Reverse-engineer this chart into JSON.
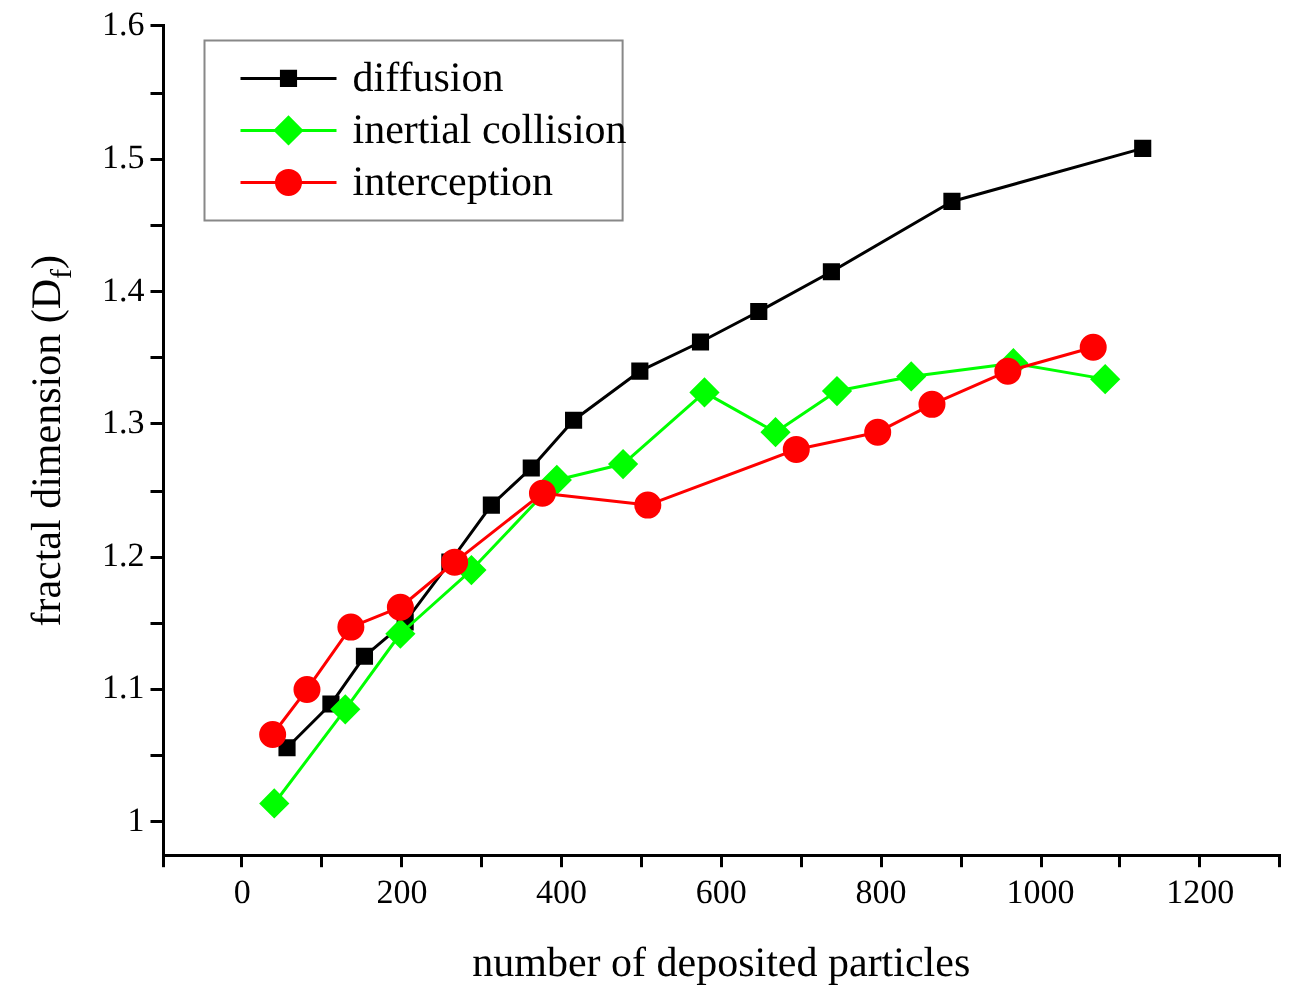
{
  "chart_data": {
    "type": "line",
    "xlabel": "number of deposited particles",
    "ylabel": "fractal dimension (D$_{f}$)",
    "xlim": [
      -100,
      1300
    ],
    "xticks": [
      {
        "value": -100,
        "label": null
      },
      0,
      {
        "value": 100,
        "label": null
      },
      200,
      {
        "value": 300,
        "label": null
      },
      400,
      {
        "value": 500,
        "label": null
      },
      600,
      {
        "value": 700,
        "label": null
      },
      800,
      {
        "value": 900,
        "label": null
      },
      1000,
      {
        "value": 1100,
        "label": null
      },
      1200,
      {
        "value": 1300,
        "label": null
      }
    ],
    "ylim": [
      0.975,
      1.6
    ],
    "yticks": [
      1.0,
      {
        "value": 1.05,
        "label": null
      },
      1.1,
      {
        "value": 1.15,
        "label": null
      },
      1.2,
      {
        "value": 1.25,
        "label": null
      },
      1.3,
      {
        "value": 1.35,
        "label": null
      },
      1.4,
      {
        "value": 1.45,
        "label": null
      },
      1.5,
      {
        "value": 1.55,
        "label": null
      },
      1.6
    ],
    "grid": false,
    "legend": "top left",
    "line_style": "solid",
    "series": [
      {
        "name": "diffusion",
        "color": "#000000",
        "marker": "square",
        "x": [
          56,
          111,
          153,
          204,
          260,
          312,
          362,
          415,
          498,
          574,
          647,
          738,
          889,
          1128
        ],
        "values": [
          1.056,
          1.089,
          1.125,
          1.151,
          1.196,
          1.239,
          1.267,
          1.303,
          1.34,
          1.362,
          1.385,
          1.415,
          1.468,
          1.508
        ]
      },
      {
        "name": "inertial collision",
        "color": "#00ff00",
        "marker": "diamond",
        "x": [
          40,
          129,
          198,
          287,
          394,
          477,
          579,
          668,
          745,
          838,
          966,
          1081
        ],
        "values": [
          1.014,
          1.085,
          1.142,
          1.19,
          1.258,
          1.27,
          1.324,
          1.294,
          1.325,
          1.336,
          1.346,
          1.334
        ]
      },
      {
        "name": "interception",
        "color": "#ff0000",
        "marker": "circle",
        "x": [
          38,
          81,
          136,
          198,
          266,
          376,
          508,
          694,
          796,
          864,
          959,
          1066
        ],
        "values": [
          1.066,
          1.1,
          1.147,
          1.162,
          1.196,
          1.248,
          1.239,
          1.281,
          1.294,
          1.315,
          1.34,
          1.358
        ]
      }
    ]
  }
}
